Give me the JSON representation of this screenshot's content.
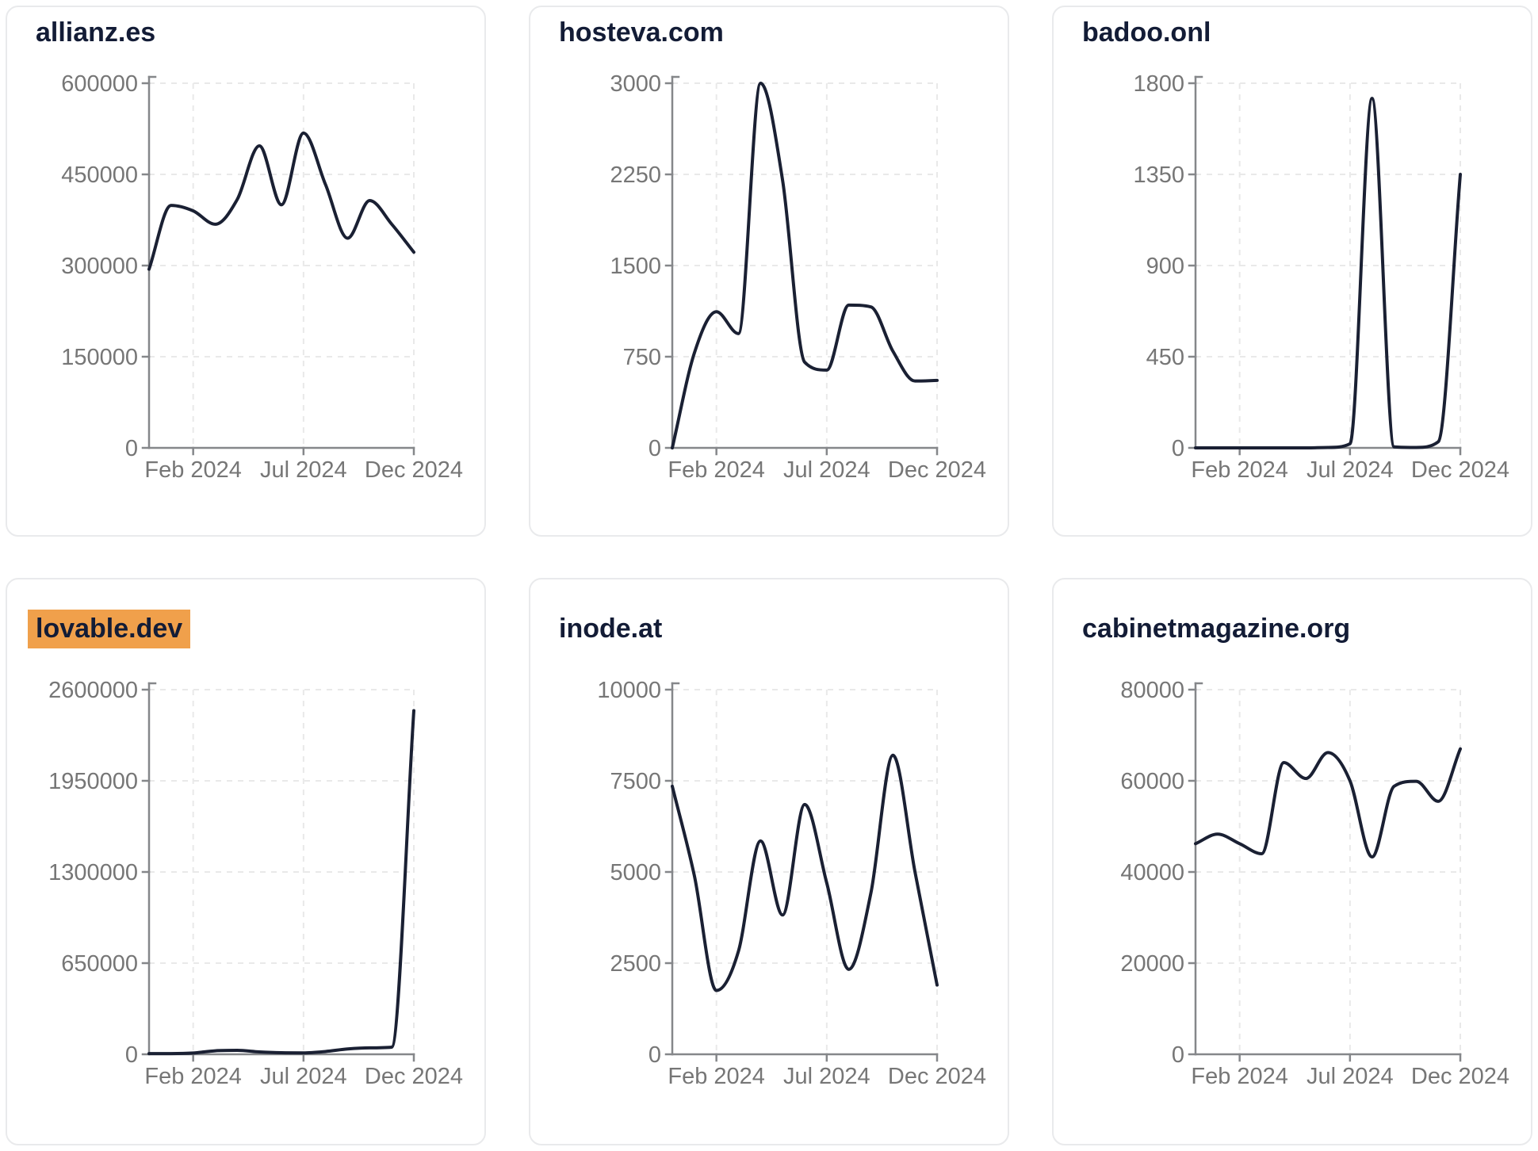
{
  "colors": {
    "line": "#1a2033",
    "highlight": "#f0a04b",
    "title_text": "#131c36",
    "tick_label": "#767676",
    "axis": "#85878a",
    "gridline": "#e9e9e9",
    "card_border": "#e9eaec",
    "background": "#ffffff"
  },
  "chart_data": [
    {
      "type": "line",
      "title": "allianz.es",
      "highlighted": false,
      "x": [
        "Dec 2023",
        "Jan 2024",
        "Feb 2024",
        "Mar 2024",
        "Apr 2024",
        "May 2024",
        "Jun 2024",
        "Jul 2024",
        "Aug 2024",
        "Sep 2024",
        "Oct 2024",
        "Nov 2024",
        "Dec 2024"
      ],
      "values": [
        294000,
        399000,
        390000,
        368000,
        409000,
        497000,
        400000,
        518000,
        433000,
        345000,
        407000,
        368000,
        322000
      ],
      "y_ticks": [
        0,
        150000,
        300000,
        450000,
        600000
      ],
      "ylim": [
        0,
        600000
      ],
      "x_tick_labels": [
        "Feb 2024",
        "Jul 2024",
        "Dec 2024"
      ],
      "grid": "dashed",
      "legend": "none"
    },
    {
      "type": "line",
      "title": "hosteva.com",
      "highlighted": false,
      "x": [
        "Dec 2023",
        "Jan 2024",
        "Feb 2024",
        "Mar 2024",
        "Apr 2024",
        "May 2024",
        "Jun 2024",
        "Jul 2024",
        "Aug 2024",
        "Sep 2024",
        "Oct 2024",
        "Nov 2024",
        "Dec 2024"
      ],
      "values": [
        0,
        780,
        1120,
        940,
        3000,
        2200,
        705,
        640,
        1175,
        1160,
        795,
        550,
        555
      ],
      "y_ticks": [
        0,
        750,
        1500,
        2250,
        3000
      ],
      "ylim": [
        0,
        3000
      ],
      "x_tick_labels": [
        "Feb 2024",
        "Jul 2024",
        "Dec 2024"
      ],
      "grid": "dashed",
      "legend": "none"
    },
    {
      "type": "line",
      "title": "badoo.onl",
      "highlighted": false,
      "x": [
        "Dec 2023",
        "Jan 2024",
        "Feb 2024",
        "Mar 2024",
        "Apr 2024",
        "May 2024",
        "Jun 2024",
        "Jul 2024",
        "Aug 2024",
        "Sep 2024",
        "Oct 2024",
        "Nov 2024",
        "Dec 2024"
      ],
      "values": [
        0,
        0,
        0,
        0,
        0,
        0,
        2,
        20,
        1725,
        5,
        2,
        30,
        1350
      ],
      "y_ticks": [
        0,
        450,
        900,
        1350,
        1800
      ],
      "ylim": [
        0,
        1800
      ],
      "x_tick_labels": [
        "Feb 2024",
        "Jul 2024",
        "Dec 2024"
      ],
      "grid": "dashed",
      "legend": "none"
    },
    {
      "type": "line",
      "title": "lovable.dev",
      "highlighted": true,
      "x": [
        "Dec 2023",
        "Jan 2024",
        "Feb 2024",
        "Mar 2024",
        "Apr 2024",
        "May 2024",
        "Jun 2024",
        "Jul 2024",
        "Aug 2024",
        "Sep 2024",
        "Oct 2024",
        "Nov 2024",
        "Dec 2024"
      ],
      "values": [
        5000,
        5000,
        9000,
        25000,
        28000,
        17000,
        11000,
        10000,
        20000,
        38000,
        46000,
        51000,
        2450000
      ],
      "y_ticks": [
        0,
        650000,
        1300000,
        1950000,
        2600000
      ],
      "ylim": [
        0,
        2600000
      ],
      "x_tick_labels": [
        "Feb 2024",
        "Jul 2024",
        "Dec 2024"
      ],
      "grid": "dashed",
      "legend": "none"
    },
    {
      "type": "line",
      "title": "inode.at",
      "highlighted": false,
      "x": [
        "Dec 2023",
        "Jan 2024",
        "Feb 2024",
        "Mar 2024",
        "Apr 2024",
        "May 2024",
        "Jun 2024",
        "Jul 2024",
        "Aug 2024",
        "Sep 2024",
        "Oct 2024",
        "Nov 2024",
        "Dec 2024"
      ],
      "values": [
        7350,
        4900,
        1750,
        2830,
        5850,
        3820,
        6850,
        4700,
        2330,
        4420,
        8200,
        5000,
        1900
      ],
      "y_ticks": [
        0,
        2500,
        5000,
        7500,
        10000
      ],
      "ylim": [
        0,
        10000
      ],
      "x_tick_labels": [
        "Feb 2024",
        "Jul 2024",
        "Dec 2024"
      ],
      "grid": "dashed",
      "legend": "none"
    },
    {
      "type": "line",
      "title": "cabinetmagazine.org",
      "highlighted": false,
      "x": [
        "Dec 2023",
        "Jan 2024",
        "Feb 2024",
        "Mar 2024",
        "Apr 2024",
        "May 2024",
        "Jun 2024",
        "Jul 2024",
        "Aug 2024",
        "Sep 2024",
        "Oct 2024",
        "Nov 2024",
        "Dec 2024"
      ],
      "values": [
        46200,
        48300,
        46200,
        44000,
        64000,
        60500,
        66200,
        60000,
        43300,
        58800,
        59900,
        55500,
        67000
      ],
      "y_ticks": [
        0,
        20000,
        40000,
        60000,
        80000
      ],
      "ylim": [
        0,
        80000
      ],
      "x_tick_labels": [
        "Feb 2024",
        "Jul 2024",
        "Dec 2024"
      ],
      "grid": "dashed",
      "legend": "none"
    }
  ]
}
